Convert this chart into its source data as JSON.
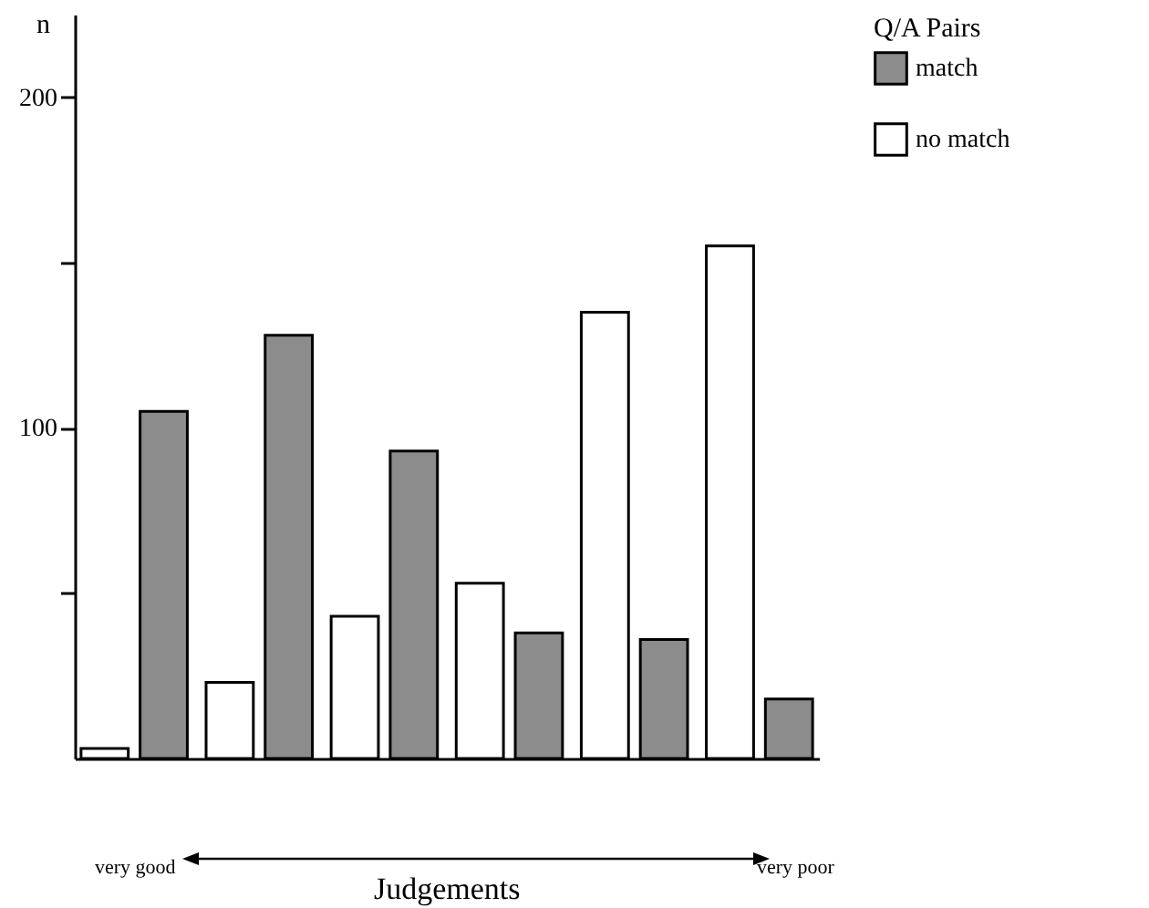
{
  "chart_data": {
    "type": "bar",
    "xlabel": "Judgements",
    "ylabel": "n",
    "legend_title": "Q/A Pairs",
    "categories": [
      null,
      null,
      null,
      null,
      null,
      null
    ],
    "series": [
      {
        "name": "no match",
        "color": "#ffffff",
        "values": [
          3,
          23,
          43,
          53,
          135,
          155
        ]
      },
      {
        "name": "match",
        "color": "#8c8c8c",
        "values": [
          105,
          128,
          93,
          38,
          36,
          18
        ]
      }
    ],
    "ylim": [
      0,
      225
    ],
    "yticks": [
      {
        "value": 50,
        "label": null
      },
      100,
      {
        "value": 150,
        "label": null
      },
      200
    ],
    "grid": false,
    "legend": "right",
    "tick_labels": "y",
    "annotations": [
      "very good",
      "very poor"
    ]
  }
}
